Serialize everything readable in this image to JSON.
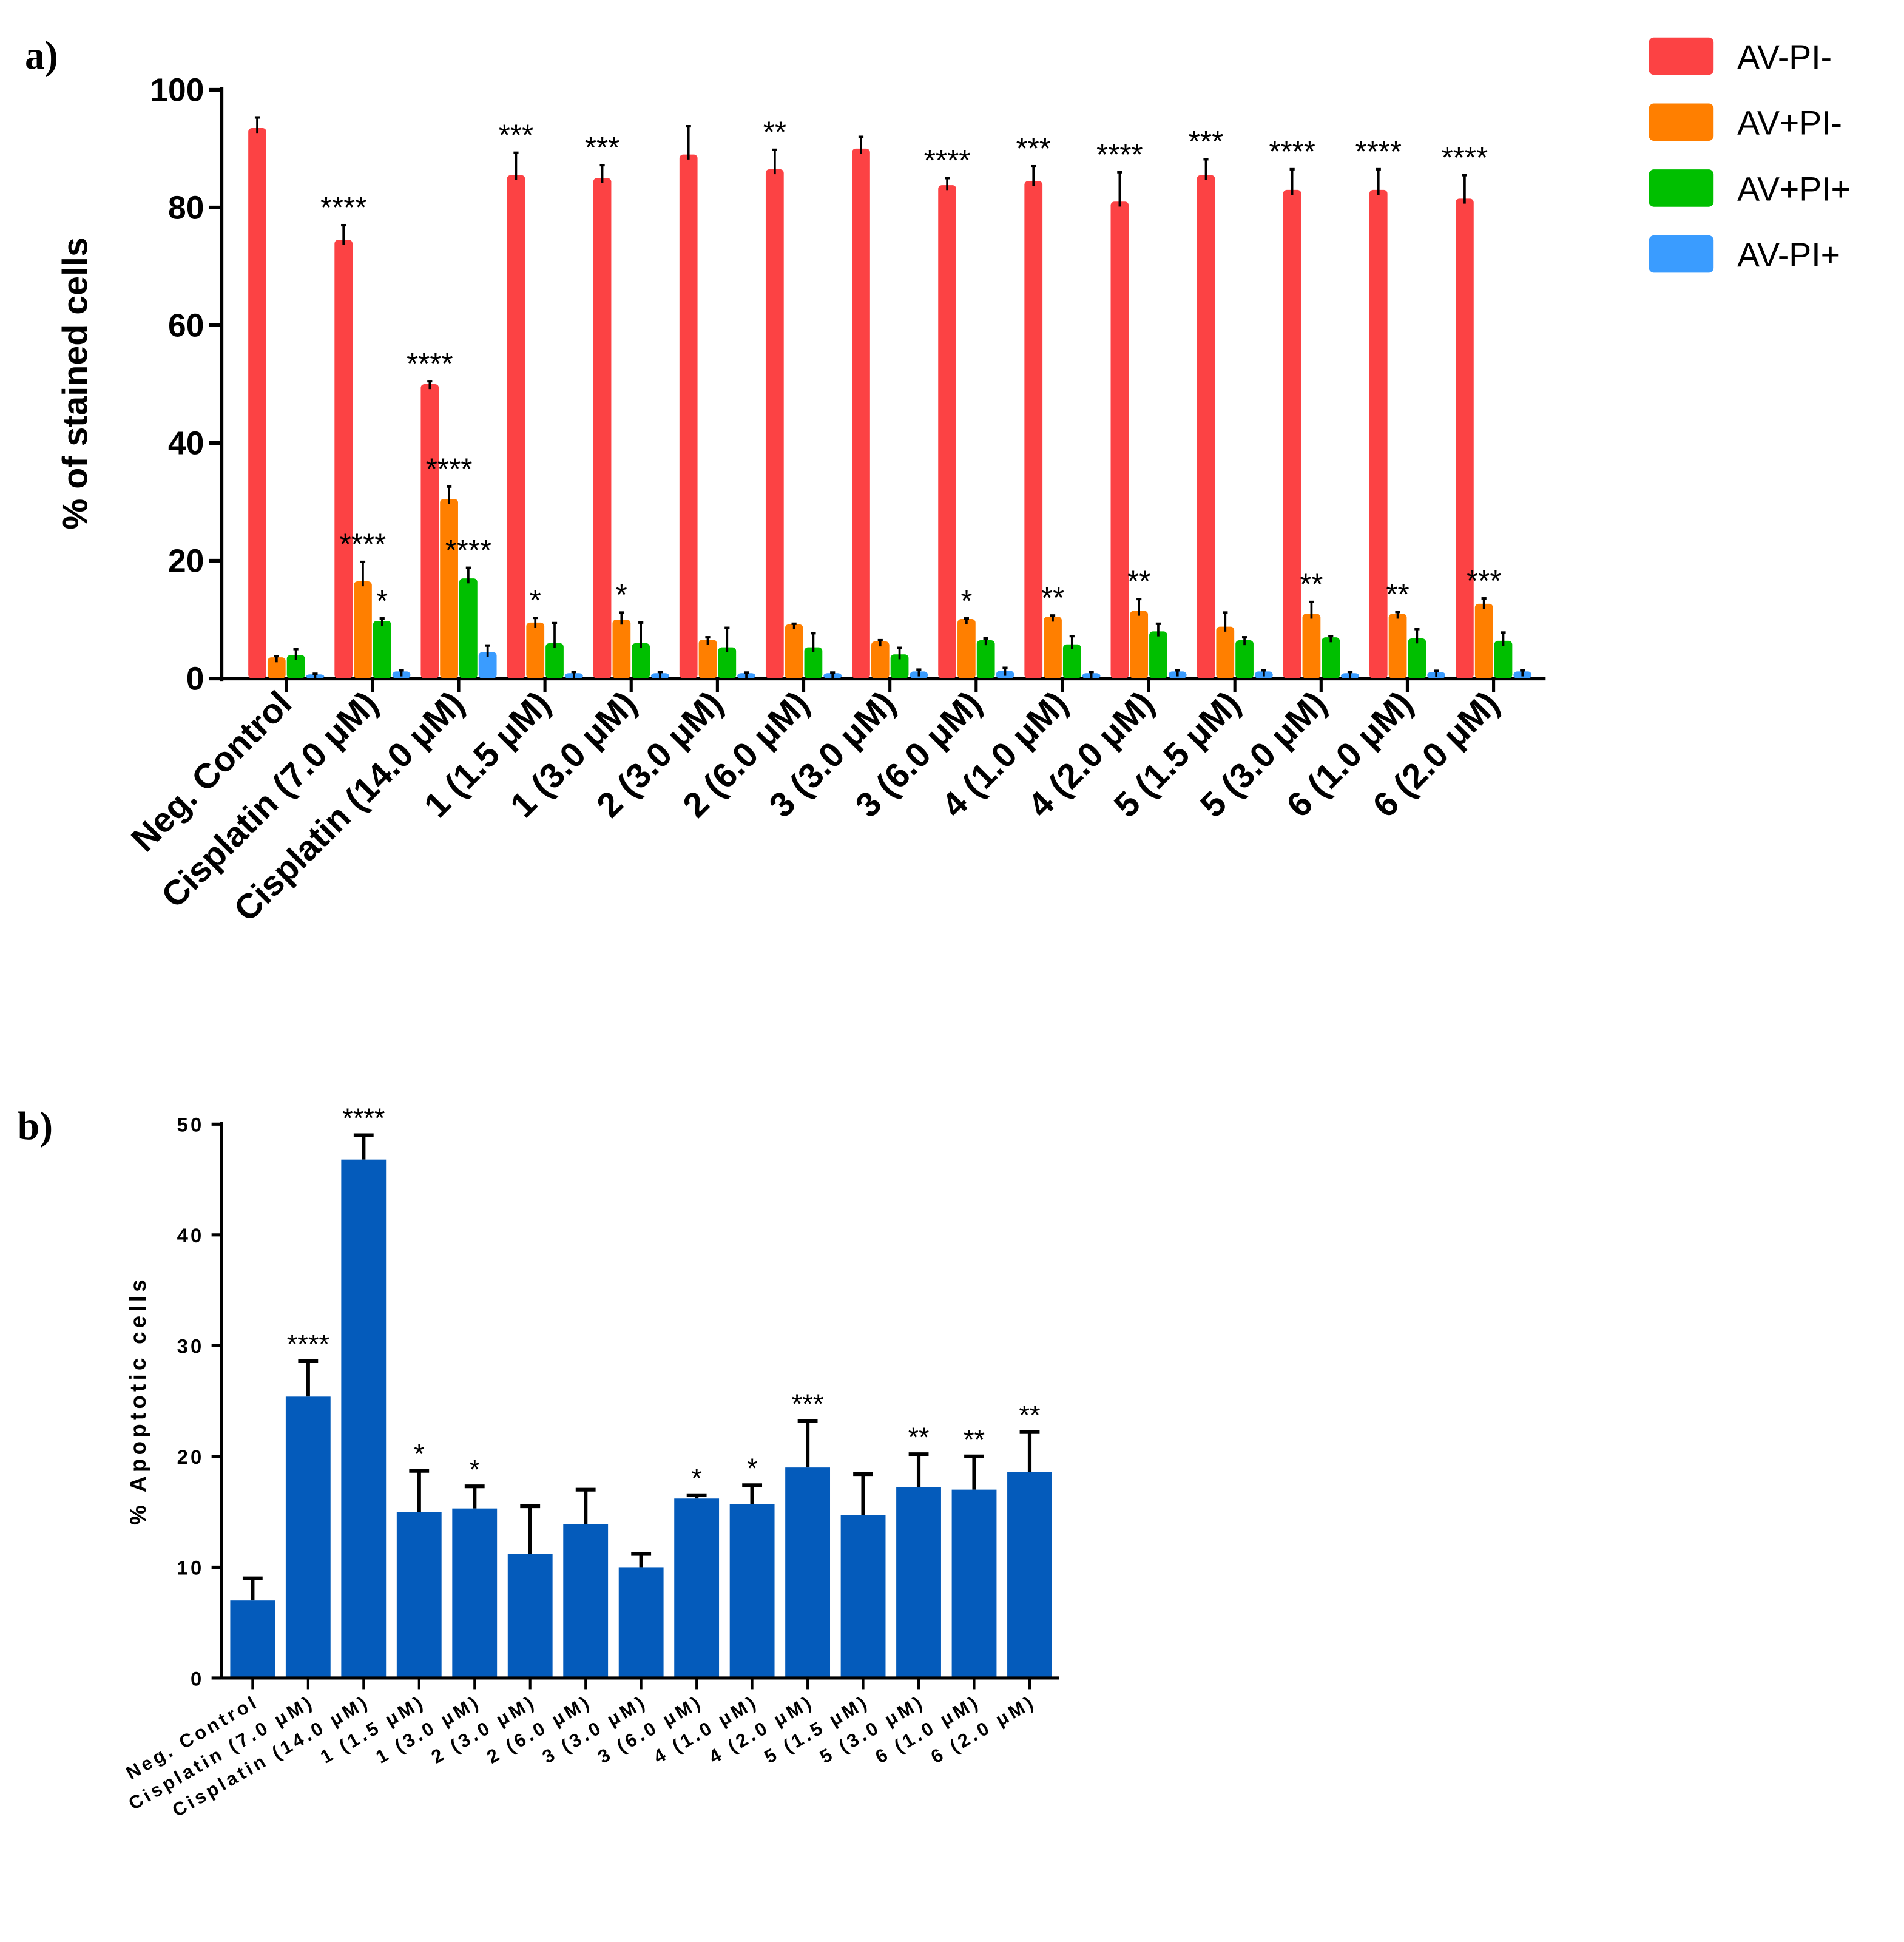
{
  "colors": {
    "AV-PI-": "#fc4244",
    "AV+PI-": "#ff7f00",
    "AV+PI+": "#00bf00",
    "AV-PI+": "#3a9cff",
    "bars_b": "#045bbb",
    "axis": "#000000"
  },
  "chart_data": [
    {
      "panel_label": "a)",
      "type": "bar",
      "title": "",
      "xlabel": "",
      "ylabel": "% of stained cells",
      "ylim": [
        0,
        100
      ],
      "yticks": [
        0,
        20,
        40,
        60,
        80,
        100
      ],
      "grid": false,
      "legend_position": "top-right",
      "categories": [
        "Neg. Control",
        "Cisplatin (7.0 μM)",
        "Cisplatin (14.0 μM)",
        "1 (1.5 μM)",
        "1 (3.0 μM)",
        "2 (3.0 μM)",
        "2 (6.0 μM)",
        "3 (3.0 μM)",
        "3 (6.0 μM)",
        "4 (1.0 μM)",
        "4 (2.0 μM)",
        "5 (1.5 μM)",
        "5 (3.0 μM)",
        "6 (1.0 μM)",
        "6 (2.0 μM)"
      ],
      "series": [
        {
          "name": "AV-PI-",
          "values": [
            93.5,
            74.5,
            50,
            85.5,
            85,
            89,
            86.5,
            90,
            83.8,
            84.5,
            81,
            85.5,
            83,
            83,
            81.5
          ],
          "error_top": [
            95.3,
            77,
            50.5,
            89.3,
            87.2,
            93.8,
            89.8,
            92,
            85,
            87,
            86,
            88.2,
            86.5,
            86.5,
            85.5
          ],
          "significance": [
            "",
            "****",
            "****",
            "***",
            "***",
            "",
            "**",
            "",
            "****",
            "***",
            "****",
            "***",
            "****",
            "****",
            "****"
          ]
        },
        {
          "name": "AV+PI-",
          "values": [
            3.6,
            16.5,
            30.5,
            9.5,
            10,
            6.6,
            9.2,
            6.3,
            10.1,
            10.5,
            11.5,
            8.8,
            11,
            11,
            12.7
          ],
          "error_top": [
            3.8,
            19.8,
            32.6,
            10.3,
            11.2,
            7,
            9.3,
            6.5,
            10.2,
            10.7,
            13.5,
            11.2,
            13,
            11.3,
            13.6
          ],
          "significance": [
            "",
            "****",
            "****",
            "*",
            "*",
            "",
            "",
            "",
            "*",
            "**",
            "**",
            "",
            "**",
            "**",
            "***"
          ]
        },
        {
          "name": "AV+PI+",
          "values": [
            4,
            9.8,
            17,
            6,
            6,
            5.3,
            5.3,
            4.1,
            6.5,
            5.8,
            8,
            6.5,
            7,
            6.8,
            6.4
          ],
          "error_top": [
            5,
            10.2,
            18.8,
            9.4,
            9.5,
            8.6,
            7.7,
            5.2,
            6.8,
            7.2,
            9.3,
            7,
            7.2,
            8.4,
            7.8
          ],
          "significance": [
            "",
            "*",
            "****",
            "",
            "",
            "",
            "",
            "",
            "",
            "",
            "",
            "",
            "",
            "",
            ""
          ]
        },
        {
          "name": "AV-PI+",
          "values": [
            0.7,
            1.2,
            4.5,
            0.9,
            0.9,
            0.9,
            0.9,
            1.2,
            1.3,
            0.9,
            1.2,
            1.2,
            0.9,
            1.1,
            1.2
          ],
          "error_top": [
            0.8,
            1.4,
            5.6,
            1.1,
            1.1,
            1,
            1,
            1.5,
            1.8,
            1.1,
            1.4,
            1.4,
            1.1,
            1.3,
            1.4
          ],
          "significance": [
            "",
            "",
            "",
            "",
            "",
            "",
            "",
            "",
            "",
            "",
            "",
            "",
            "",
            "",
            ""
          ]
        }
      ]
    },
    {
      "panel_label": "b)",
      "type": "bar",
      "title": "",
      "xlabel": "",
      "ylabel": "% Apoptotic cells",
      "ylim": [
        0,
        50
      ],
      "yticks": [
        0,
        10,
        20,
        30,
        40,
        50
      ],
      "grid": false,
      "categories": [
        "Neg. Control",
        "Cisplatin (7.0 μM)",
        "Cisplatin (14.0 μM)",
        "1 (1.5 μM)",
        "1 (3.0 μM)",
        "2 (3.0 μM)",
        "2 (6.0 μM)",
        "3 (3.0 μM)",
        "3 (6.0 μM)",
        "4 (1.0 μM)",
        "4 (2.0 μM)",
        "5 (1.5 μM)",
        "5 (3.0 μM)",
        "6 (1.0 μM)",
        "6 (2.0 μM)"
      ],
      "values": [
        7,
        25.4,
        46.8,
        15,
        15.3,
        11.2,
        13.9,
        10,
        16.2,
        15.7,
        19,
        14.7,
        17.2,
        17,
        18.6
      ],
      "error_top": [
        9,
        28.6,
        49,
        18.7,
        17.3,
        15.5,
        17,
        11.2,
        16.5,
        17.4,
        23.2,
        18.4,
        20.2,
        20,
        22.2
      ],
      "significance": [
        "",
        "****",
        "****",
        "*",
        "*",
        "",
        "",
        "",
        "*",
        "*",
        "***",
        "",
        "**",
        "**",
        "**"
      ]
    }
  ]
}
